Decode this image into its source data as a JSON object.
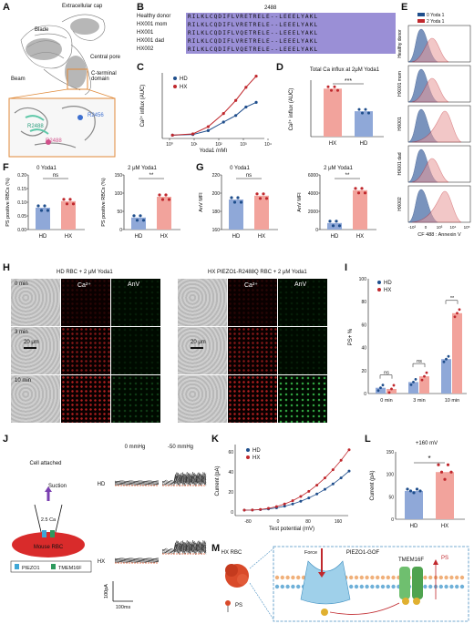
{
  "panels": {
    "A": {
      "letter": "A",
      "labels": {
        "extracellular": "Extracellular cap",
        "blade": "Blade",
        "pore": "Central pore",
        "beam": "Beam",
        "cterm": "C-terminal domain",
        "r2456": "R2456",
        "r2488": "R2488",
        "r2488b": "R2488"
      }
    },
    "B": {
      "letter": "B",
      "position": "2488",
      "rows": [
        {
          "name": "Healthy donor",
          "seq": "RILKLCQDIFLVRETRELE--LEEELYAKL"
        },
        {
          "name": "HX001 mom",
          "seq": "RILKLCQDIFLVRETRELE--LEEELYAKL"
        },
        {
          "name": "HX001",
          "seq": "RILKLCQDIFLVQETRELE--LEEELYAKL"
        },
        {
          "name": "HX001 dad",
          "seq": "RILKLCQDIFLVRETRELE--LEEELYAKL"
        },
        {
          "name": "HX002",
          "seq": "RILKLCQDIFLVQETRELE--LEEELYAKL"
        }
      ]
    },
    "C": {
      "letter": "C",
      "ylabel": "Ca²⁺ influx (AUC)",
      "xlabel": "Yoda1 (nM)",
      "legend": [
        "HD",
        "HX"
      ],
      "xticks": [
        "10⁰",
        "10¹",
        "10²",
        "10³",
        "10⁴"
      ]
    },
    "D": {
      "letter": "D",
      "title": "Total Ca influx at 2μM Yoda1",
      "ylabel": "Ca²⁺ influx (AUC)",
      "cats": [
        "HX",
        "HD"
      ],
      "sig": "***"
    },
    "E": {
      "letter": "E",
      "legend": [
        "0 Yoda 1",
        "2 Yoda 1"
      ],
      "rows": [
        "Healthy donor",
        "HX001 mom",
        "HX001",
        "HX001 dad",
        "HX002"
      ],
      "xlabel": "CF 488 : Annexin V",
      "xticks": [
        "-10³",
        "0",
        "10³",
        "10⁴",
        "10⁵"
      ]
    },
    "F": {
      "letter": "F",
      "t1": "0 Yoda1",
      "t2": "2 μM Yoda1",
      "ylabel1": "PS positive RBCs (%)",
      "ylabel2": "PS positive RBCs (%)",
      "cats": [
        "HD",
        "HX"
      ],
      "sig1": "ns",
      "sig2": "**",
      "yt1": [
        "0.00",
        "0.05",
        "0.10",
        "0.15",
        "0.20"
      ],
      "yt2": [
        "0",
        "50",
        "100",
        "150"
      ]
    },
    "G": {
      "letter": "G",
      "t1": "0 Yoda1",
      "t2": "2 μM Yoda1",
      "ylabel1": "AnV MFI",
      "ylabel2": "AnV MFI",
      "cats": [
        "HD",
        "HX"
      ],
      "sig1": "ns",
      "sig2": "**",
      "yt1": [
        "160",
        "180",
        "200",
        "220"
      ],
      "yt2": [
        "0",
        "2000",
        "4000",
        "6000"
      ]
    },
    "H": {
      "letter": "H",
      "t1": "HD RBC + 2 μM Yoda1",
      "t2": "HX PIEZO1-R2488Q RBC + 2 μM Yoda1",
      "cols": [
        "Ca²⁺",
        "AnV"
      ],
      "rows": [
        "0 min",
        "3 min",
        "10 min"
      ],
      "scale": "20 μm"
    },
    "I": {
      "letter": "I",
      "ylabel": "PS+ %",
      "legend": [
        "HD",
        "HX"
      ],
      "cats": [
        "0 min",
        "3 min",
        "10 min"
      ],
      "sigs": [
        "ns",
        "ns",
        "**"
      ],
      "yticks": [
        "0",
        "20",
        "40",
        "60",
        "80",
        "100"
      ]
    },
    "J": {
      "letter": "J",
      "cell": "Cell attached",
      "suction": "Suction",
      "ca": "2.5 Ca",
      "cellname": "Mouse RBC",
      "legend": [
        "PIEZO1",
        "TMEM16F"
      ],
      "p0": "0 mmHg",
      "p1": "-50 mmHg",
      "r1": "HD",
      "r2": "HX",
      "sy": "100pA",
      "sx": "100ms"
    },
    "K": {
      "letter": "K",
      "ylabel": "Current (pA)",
      "xlabel": "Test potential (mV)",
      "legend": [
        "HD",
        "HX"
      ],
      "xticks": [
        "-80",
        "0",
        "80",
        "160"
      ],
      "yticks": [
        "0",
        "20",
        "40",
        "60"
      ]
    },
    "L": {
      "letter": "L",
      "title": "+160 mV",
      "ylabel": "Current (pA)",
      "cats": [
        "HD",
        "HX"
      ],
      "sig": "*",
      "yticks": [
        "0",
        "50",
        "100",
        "150"
      ]
    },
    "M": {
      "letter": "M",
      "rbc": "HX RBC",
      "force": "Force",
      "piezo": "PIEZO1-GOF",
      "tmem": "TMEM16F",
      "ps": "PS",
      "psout": "PS"
    }
  },
  "colors": {
    "hd": "#1f4e8c",
    "hx": "#c0282d",
    "hxbar": "#f2a39c",
    "hdbar": "#8fa8d8",
    "align": "#9a8fd6"
  }
}
